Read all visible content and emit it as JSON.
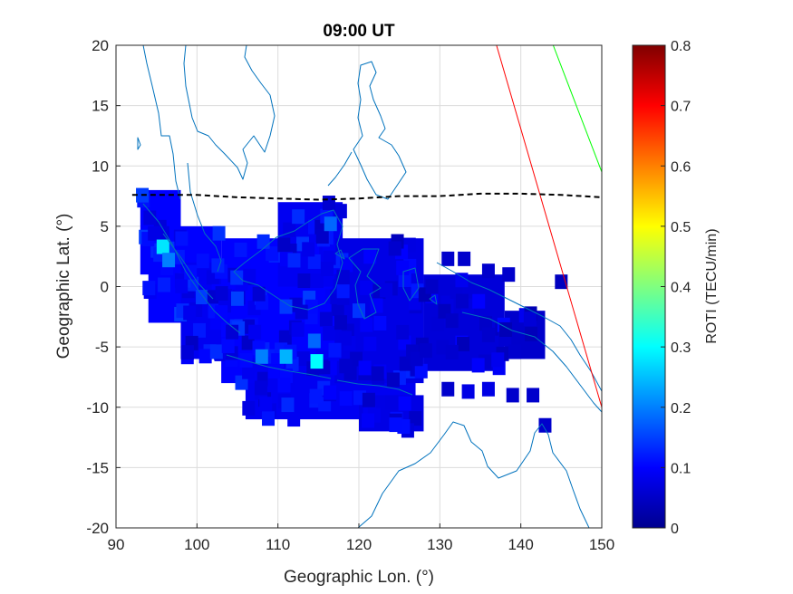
{
  "chart_data": {
    "type": "heatmap",
    "title": "09:00 UT",
    "xlabel": "Geographic Lon. (°)",
    "ylabel": "Geographic Lat. (°)",
    "xlim": [
      90,
      150
    ],
    "ylim": [
      -20,
      20
    ],
    "xticks": [
      "90",
      "100",
      "110",
      "120",
      "130",
      "140",
      "150"
    ],
    "yticks": [
      "20",
      "15",
      "10",
      "5",
      "0",
      "-5",
      "-10",
      "-15",
      "-20"
    ],
    "grid": true,
    "colorbar": {
      "label": "ROTI (TECU/min)",
      "range": [
        0,
        0.8
      ],
      "ticks": [
        "0.8",
        "0.7",
        "0.6",
        "0.5",
        "0.4",
        "0.3",
        "0.2",
        "0.1",
        "0"
      ],
      "colormap": "jet"
    },
    "dip_equator": {
      "lon": [
        92,
        95,
        100,
        105,
        110,
        115,
        120,
        125,
        130,
        135,
        140,
        145,
        150
      ],
      "lat": [
        7.6,
        7.6,
        7.6,
        7.4,
        7.3,
        7.2,
        7.3,
        7.5,
        7.5,
        7.7,
        7.7,
        7.6,
        7.4
      ]
    },
    "red_line": {
      "lon": [
        137,
        150
      ],
      "lat": [
        20,
        -10
      ]
    },
    "green_line": {
      "lon": [
        144,
        150
      ],
      "lat": [
        20,
        9.5
      ]
    },
    "roti_regions": [
      {
        "lon": [
          93,
          98
        ],
        "lat": [
          1,
          8
        ],
        "roti": 0.1
      },
      {
        "lon": [
          94,
          103
        ],
        "lat": [
          -3,
          5
        ],
        "roti": 0.1
      },
      {
        "lon": [
          98,
          108
        ],
        "lat": [
          -6,
          2
        ],
        "roti": 0.09
      },
      {
        "lon": [
          103,
          118
        ],
        "lat": [
          -8,
          4
        ],
        "roti": 0.1
      },
      {
        "lon": [
          106,
          127
        ],
        "lat": [
          -11,
          -6
        ],
        "roti": 0.09
      },
      {
        "lon": [
          110,
          118
        ],
        "lat": [
          0,
          7
        ],
        "roti": 0.09
      },
      {
        "lon": [
          117,
          128
        ],
        "lat": [
          -8,
          4
        ],
        "roti": 0.08
      },
      {
        "lon": [
          120,
          128
        ],
        "lat": [
          -12,
          -9
        ],
        "roti": 0.08
      },
      {
        "lon": [
          128,
          138
        ],
        "lat": [
          -7,
          1
        ],
        "roti": 0.07
      },
      {
        "lon": [
          138,
          143
        ],
        "lat": [
          -6,
          -2
        ],
        "roti": 0.06
      }
    ],
    "roti_points": [
      {
        "lon": 95.8,
        "lat": 3.3,
        "roti": 0.28
      },
      {
        "lon": 96.5,
        "lat": 2.2,
        "roti": 0.2
      },
      {
        "lon": 108,
        "lat": -5.8,
        "roti": 0.2
      },
      {
        "lon": 111,
        "lat": -5.8,
        "roti": 0.24
      },
      {
        "lon": 114.8,
        "lat": -6.2,
        "roti": 0.3
      },
      {
        "lon": 116.5,
        "lat": 5.2,
        "roti": 0.18
      },
      {
        "lon": 114.5,
        "lat": -4.5,
        "roti": 0.18
      },
      {
        "lon": 105,
        "lat": -1,
        "roti": 0.15
      },
      {
        "lon": 120,
        "lat": -2,
        "roti": 0.14
      },
      {
        "lon": 145,
        "lat": 0.4,
        "roti": 0.05
      },
      {
        "lon": 143,
        "lat": -11.5,
        "roti": 0.06
      },
      {
        "lon": 133,
        "lat": 2.3,
        "roti": 0.06
      },
      {
        "lon": 131,
        "lat": 2.3,
        "roti": 0.06
      },
      {
        "lon": 136,
        "lat": 1.3,
        "roti": 0.06
      },
      {
        "lon": 138.5,
        "lat": 1.0,
        "roti": 0.06
      },
      {
        "lon": 139,
        "lat": -9,
        "roti": 0.06
      },
      {
        "lon": 141.5,
        "lat": -9,
        "roti": 0.06
      },
      {
        "lon": 136,
        "lat": -8.5,
        "roti": 0.08
      },
      {
        "lon": 133.5,
        "lat": -8.7,
        "roti": 0.08
      },
      {
        "lon": 131,
        "lat": -8.5,
        "roti": 0.06
      },
      {
        "lon": 136,
        "lat": -4,
        "roti": 0.06
      },
      {
        "lon": 134,
        "lat": -3,
        "roti": 0.07
      }
    ]
  },
  "colors": {
    "coastline": "#0072bd",
    "red_line": "#ff0000",
    "green_line": "#00ff00",
    "dip_equator": "#000000"
  }
}
